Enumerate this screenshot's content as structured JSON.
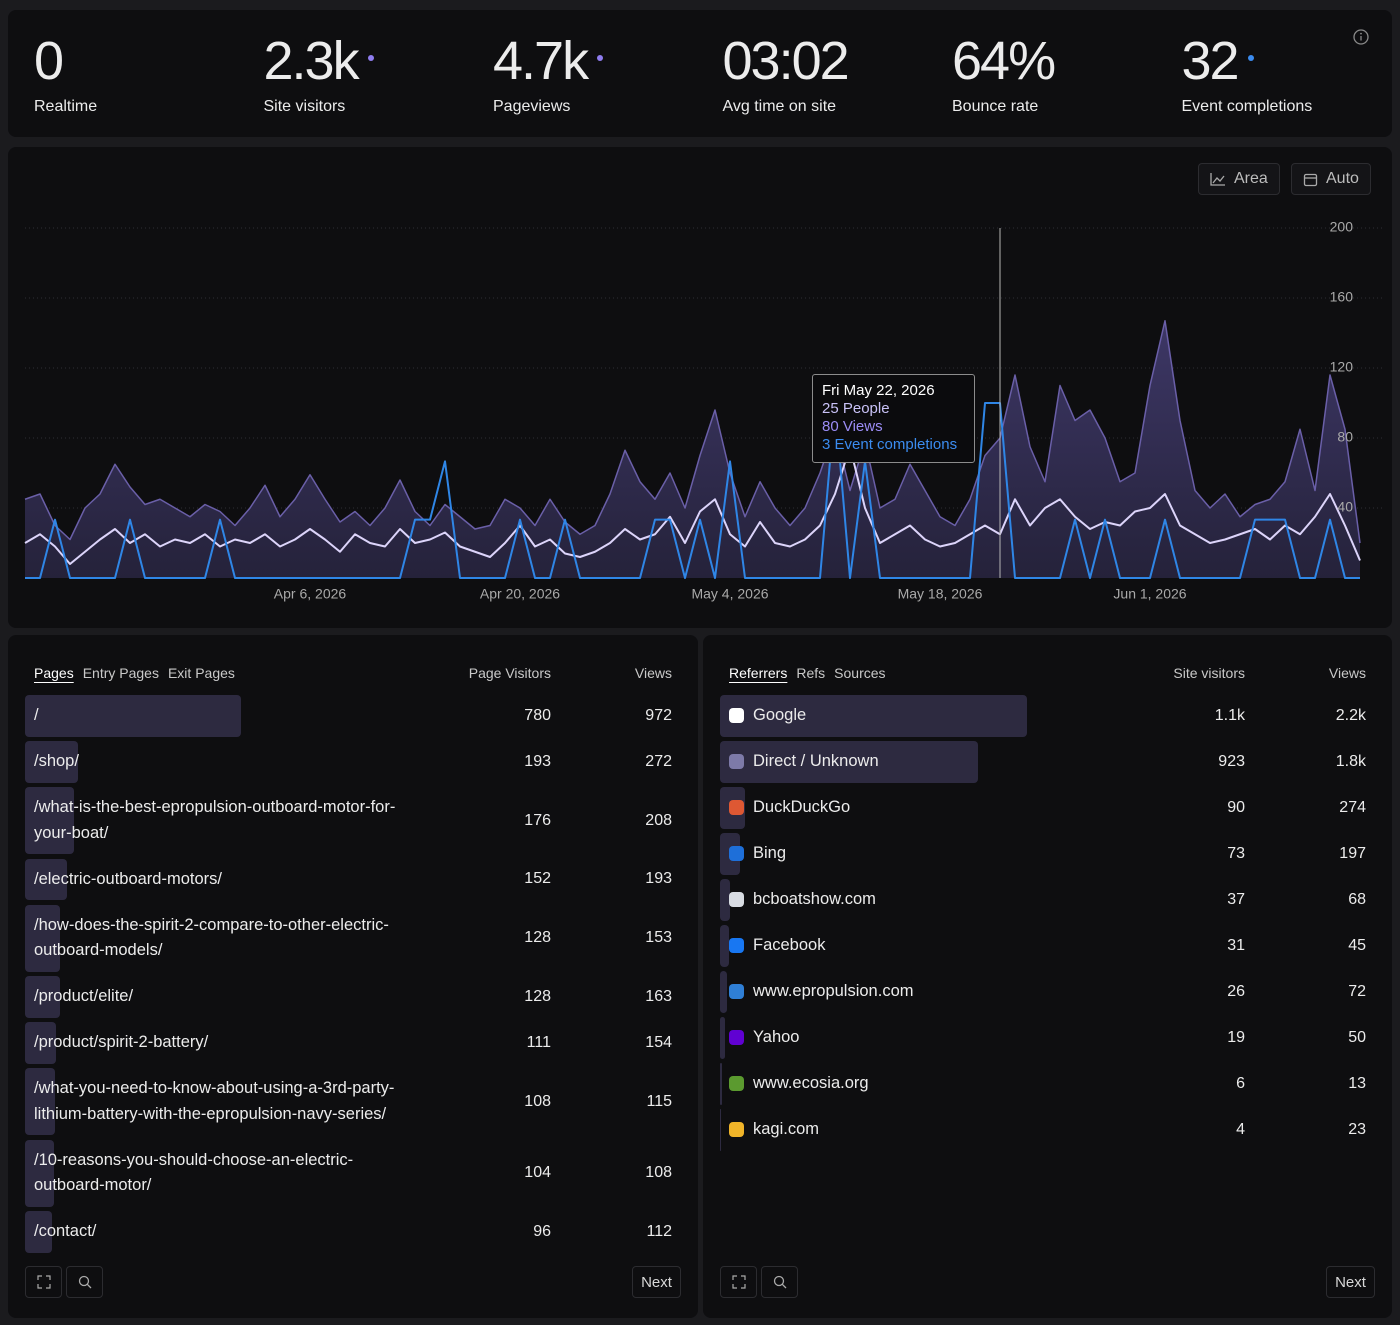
{
  "stats": [
    {
      "value": "0",
      "label": "Realtime"
    },
    {
      "value": "2.3k",
      "label": "Site visitors",
      "dot": "#8f7df0"
    },
    {
      "value": "4.7k",
      "label": "Pageviews",
      "dot": "#8f7df0"
    },
    {
      "value": "03:02",
      "label": "Avg time on site"
    },
    {
      "value": "64%",
      "label": "Bounce rate"
    },
    {
      "value": "32",
      "label": "Event completions",
      "dot": "#3b8cf0"
    }
  ],
  "chart_controls": [
    "Area",
    "Auto"
  ],
  "tooltip": {
    "title": "Fri May 22, 2026",
    "rows": [
      "25 People",
      "80 Views",
      "3 Event completions"
    ]
  },
  "chart_data": {
    "type": "line",
    "x": [
      "2026-03-18",
      "2026-03-19",
      "2026-03-20",
      "2026-03-21",
      "2026-03-22",
      "2026-03-23",
      "2026-03-24",
      "2026-03-25",
      "2026-03-26",
      "2026-03-27",
      "2026-03-28",
      "2026-03-29",
      "2026-03-30",
      "2026-03-31",
      "2026-04-01",
      "2026-04-02",
      "2026-04-03",
      "2026-04-04",
      "2026-04-05",
      "2026-04-06",
      "2026-04-07",
      "2026-04-08",
      "2026-04-09",
      "2026-04-10",
      "2026-04-11",
      "2026-04-12",
      "2026-04-13",
      "2026-04-14",
      "2026-04-15",
      "2026-04-16",
      "2026-04-17",
      "2026-04-18",
      "2026-04-19",
      "2026-04-20",
      "2026-04-21",
      "2026-04-22",
      "2026-04-23",
      "2026-04-24",
      "2026-04-25",
      "2026-04-26",
      "2026-04-27",
      "2026-04-28",
      "2026-04-29",
      "2026-04-30",
      "2026-05-01",
      "2026-05-02",
      "2026-05-03",
      "2026-05-04",
      "2026-05-05",
      "2026-05-06",
      "2026-05-07",
      "2026-05-08",
      "2026-05-09",
      "2026-05-10",
      "2026-05-11",
      "2026-05-12",
      "2026-05-13",
      "2026-05-14",
      "2026-05-15",
      "2026-05-16",
      "2026-05-17",
      "2026-05-18",
      "2026-05-19",
      "2026-05-20",
      "2026-05-21",
      "2026-05-22",
      "2026-05-23",
      "2026-05-24",
      "2026-05-25",
      "2026-05-26",
      "2026-05-27",
      "2026-05-28",
      "2026-05-29",
      "2026-05-30",
      "2026-05-31",
      "2026-06-01",
      "2026-06-02",
      "2026-06-03",
      "2026-06-04",
      "2026-06-05",
      "2026-06-06",
      "2026-06-07",
      "2026-06-08",
      "2026-06-09",
      "2026-06-10",
      "2026-06-11",
      "2026-06-12",
      "2026-06-13",
      "2026-06-14",
      "2026-06-15"
    ],
    "series": [
      {
        "name": "Views",
        "color": "#6a5fa8",
        "fill": true,
        "values": [
          45,
          48,
          30,
          22,
          40,
          48,
          65,
          52,
          42,
          45,
          40,
          35,
          42,
          38,
          30,
          40,
          53,
          35,
          45,
          59,
          45,
          32,
          38,
          30,
          40,
          56,
          38,
          30,
          42,
          35,
          28,
          30,
          45,
          40,
          30,
          45,
          32,
          25,
          30,
          48,
          73,
          55,
          45,
          60,
          40,
          70,
          96,
          60,
          35,
          55,
          40,
          30,
          40,
          60,
          85,
          50,
          78,
          40,
          45,
          65,
          50,
          35,
          30,
          45,
          70,
          80,
          116,
          75,
          55,
          110,
          90,
          96,
          80,
          55,
          60,
          110,
          147,
          90,
          50,
          40,
          48,
          35,
          42,
          45,
          55,
          85,
          50,
          116,
          85,
          20
        ]
      },
      {
        "name": "People",
        "color": "#dcd4fa",
        "values": [
          20,
          25,
          18,
          8,
          15,
          22,
          28,
          20,
          25,
          18,
          22,
          20,
          25,
          18,
          22,
          20,
          25,
          18,
          22,
          28,
          22,
          15,
          25,
          20,
          18,
          28,
          20,
          22,
          26,
          18,
          15,
          12,
          20,
          30,
          18,
          22,
          14,
          12,
          15,
          20,
          28,
          22,
          25,
          35,
          20,
          38,
          45,
          25,
          18,
          32,
          20,
          18,
          22,
          30,
          48,
          75,
          40,
          20,
          25,
          30,
          22,
          18,
          20,
          25,
          30,
          25,
          45,
          30,
          40,
          45,
          35,
          28,
          32,
          30,
          38,
          40,
          48,
          30,
          25,
          20,
          22,
          25,
          28,
          22,
          30,
          25,
          35,
          48,
          30,
          10
        ]
      },
      {
        "name": "Event completions",
        "color": "#2f86e6",
        "axis": "y2",
        "values": [
          0,
          0,
          1,
          0,
          0,
          0,
          0,
          1,
          0,
          0,
          0,
          0,
          0,
          1,
          0,
          0,
          0,
          0,
          0,
          0,
          0,
          0,
          0,
          0,
          0,
          0,
          1,
          1,
          2,
          0,
          0,
          0,
          0,
          1,
          0,
          0,
          1,
          0,
          0,
          0,
          0,
          0,
          1,
          1,
          0,
          1,
          0,
          2,
          0,
          0,
          0,
          0,
          0,
          0,
          3,
          0,
          2,
          0,
          0,
          0,
          0,
          0,
          0,
          0,
          3,
          3,
          0,
          0,
          0,
          0,
          1,
          0,
          1,
          0,
          0,
          0,
          1,
          0,
          0,
          0,
          0,
          0,
          1,
          1,
          1,
          0,
          0,
          1,
          0,
          0
        ]
      }
    ],
    "ylim": [
      0,
      200
    ],
    "yticks": [
      40,
      80,
      120,
      160,
      200
    ],
    "y2lim": [
      0,
      6
    ],
    "grid": true,
    "xticks": [
      {
        "value": "2026-04-06",
        "label": "Apr 6, 2026"
      },
      {
        "value": "2026-04-20",
        "label": "Apr 20, 2026"
      },
      {
        "value": "2026-05-04",
        "label": "May 4, 2026"
      },
      {
        "value": "2026-05-18",
        "label": "May 18, 2026"
      },
      {
        "value": "2026-06-01",
        "label": "Jun 1, 2026"
      }
    ]
  },
  "pages_panel": {
    "tabs": [
      "Pages",
      "Entry Pages",
      "Exit Pages"
    ],
    "columns": [
      "Page Visitors",
      "Views"
    ],
    "rows": [
      {
        "name": "/",
        "visitors": 780,
        "views": 972
      },
      {
        "name": "/shop/",
        "visitors": 193,
        "views": 272
      },
      {
        "name": "/what-is-the-best-epropulsion-outboard-motor-for-your-boat/",
        "visitors": 176,
        "views": 208
      },
      {
        "name": "/electric-outboard-motors/",
        "visitors": 152,
        "views": 193
      },
      {
        "name": "/how-does-the-spirit-2-compare-to-other-electric-outboard-models/",
        "visitors": 128,
        "views": 153
      },
      {
        "name": "/product/elite/",
        "visitors": 128,
        "views": 163
      },
      {
        "name": "/product/spirit-2-battery/",
        "visitors": 111,
        "views": 154
      },
      {
        "name": "/what-you-need-to-know-about-using-a-3rd-party-lithium-battery-with-the-epropulsion-navy-series/",
        "visitors": 108,
        "views": 115
      },
      {
        "name": "/10-reasons-you-should-choose-an-electric-outboard-motor/",
        "visitors": 104,
        "views": 108
      },
      {
        "name": "/contact/",
        "visitors": 96,
        "views": 112
      }
    ],
    "next": "Next"
  },
  "referrers_panel": {
    "tabs": [
      "Referrers",
      "Refs",
      "Sources"
    ],
    "columns": [
      "Site visitors",
      "Views"
    ],
    "rows": [
      {
        "name": "Google",
        "visitors": {
          "value": 1100,
          "label": "1.1k"
        },
        "views": {
          "value": 2200,
          "label": "2.2k"
        }
      },
      {
        "name": "Direct / Unknown",
        "visitors": 923,
        "views": {
          "value": 1800,
          "label": "1.8k"
        }
      },
      {
        "name": "DuckDuckGo",
        "visitors": 90,
        "views": 274
      },
      {
        "name": "Bing",
        "visitors": 73,
        "views": 197
      },
      {
        "name": "bcboatshow.com",
        "visitors": 37,
        "views": 68
      },
      {
        "name": "Facebook",
        "visitors": 31,
        "views": 45
      },
      {
        "name": "www.epropulsion.com",
        "visitors": 26,
        "views": 72
      },
      {
        "name": "Yahoo",
        "visitors": 19,
        "views": 50
      },
      {
        "name": "www.ecosia.org",
        "visitors": 6,
        "views": 13
      },
      {
        "name": "kagi.com",
        "visitors": 4,
        "views": 23
      }
    ],
    "next": "Next"
  }
}
